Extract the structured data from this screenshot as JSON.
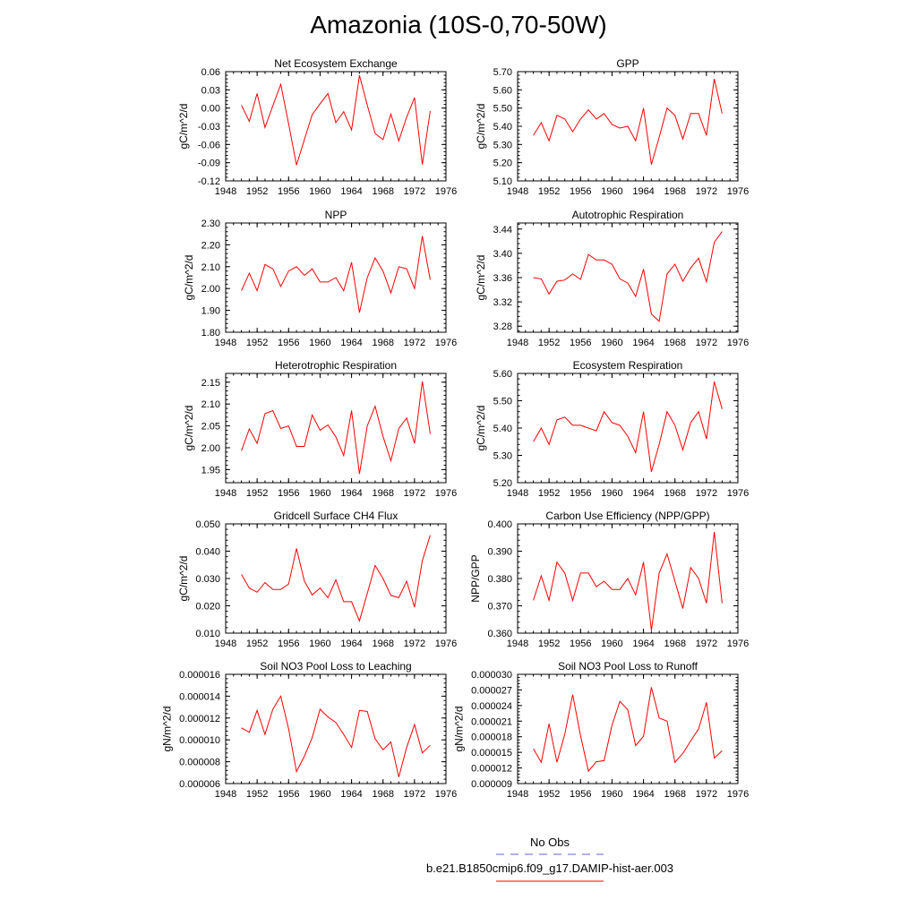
{
  "figure": {
    "title": "Amazonia (10S-0,70-50W)"
  },
  "legend": {
    "obs_label": "No Obs",
    "obs_color": "#6060e0",
    "model_label": "b.e21.B1850cmip6.f09_g17.DAMIP-hist-aer.003",
    "model_color": "#ff0000"
  },
  "chart_data": [
    {
      "type": "line",
      "title": "Net Ecosystem Exchange",
      "ylabel": "gC/m^2/d",
      "xlim": [
        1948,
        1976
      ],
      "xticks": [
        1948,
        1952,
        1956,
        1960,
        1964,
        1968,
        1972,
        1976
      ],
      "ylim": [
        -0.12,
        0.06
      ],
      "yticks": [
        "-0.12",
        "-0.09",
        "-0.06",
        "-0.03",
        "0.00",
        "0.03",
        "0.06"
      ],
      "series": [
        {
          "color": "#ff0000",
          "x": [
            1950,
            1951,
            1952,
            1953,
            1954,
            1955,
            1956,
            1957,
            1958,
            1959,
            1960,
            1961,
            1962,
            1963,
            1964,
            1965,
            1966,
            1967,
            1968,
            1969,
            1970,
            1971,
            1972,
            1973,
            1974
          ],
          "y": [
            0.005,
            -0.022,
            0.024,
            -0.032,
            0.004,
            0.039,
            -0.026,
            -0.094,
            -0.052,
            -0.011,
            0.007,
            0.024,
            -0.024,
            -0.006,
            -0.036,
            0.054,
            0.005,
            -0.042,
            -0.052,
            -0.01,
            -0.054,
            -0.015,
            0.017,
            -0.093,
            -0.005
          ]
        }
      ]
    },
    {
      "type": "line",
      "title": "GPP",
      "ylabel": "gC/m^2/d",
      "xlim": [
        1948,
        1976
      ],
      "xticks": [
        1948,
        1952,
        1956,
        1960,
        1964,
        1968,
        1972,
        1976
      ],
      "ylim": [
        5.1,
        5.7
      ],
      "yticks": [
        "5.10",
        "5.20",
        "5.30",
        "5.40",
        "5.50",
        "5.60",
        "5.70"
      ],
      "series": [
        {
          "color": "#ff0000",
          "x": [
            1950,
            1951,
            1952,
            1953,
            1954,
            1955,
            1956,
            1957,
            1958,
            1959,
            1960,
            1961,
            1962,
            1963,
            1964,
            1965,
            1966,
            1967,
            1968,
            1969,
            1970,
            1971,
            1972,
            1973,
            1974
          ],
          "y": [
            5.35,
            5.42,
            5.32,
            5.46,
            5.44,
            5.37,
            5.44,
            5.49,
            5.44,
            5.47,
            5.41,
            5.39,
            5.4,
            5.32,
            5.5,
            5.19,
            5.34,
            5.5,
            5.46,
            5.33,
            5.47,
            5.47,
            5.35,
            5.66,
            5.47
          ]
        }
      ]
    },
    {
      "type": "line",
      "title": "NPP",
      "ylabel": "gC/m^2/d",
      "xlim": [
        1948,
        1976
      ],
      "xticks": [
        1948,
        1952,
        1956,
        1960,
        1964,
        1968,
        1972,
        1976
      ],
      "ylim": [
        1.8,
        2.3
      ],
      "yticks": [
        "1.80",
        "1.90",
        "2.00",
        "2.10",
        "2.20",
        "2.30"
      ],
      "series": [
        {
          "color": "#ff0000",
          "x": [
            1950,
            1951,
            1952,
            1953,
            1954,
            1955,
            1956,
            1957,
            1958,
            1959,
            1960,
            1961,
            1962,
            1963,
            1964,
            1965,
            1966,
            1967,
            1968,
            1969,
            1970,
            1971,
            1972,
            1973,
            1974
          ],
          "y": [
            1.99,
            2.07,
            1.99,
            2.11,
            2.09,
            2.01,
            2.08,
            2.1,
            2.06,
            2.09,
            2.03,
            2.03,
            2.05,
            1.99,
            2.12,
            1.89,
            2.05,
            2.14,
            2.08,
            1.98,
            2.1,
            2.09,
            2.0,
            2.24,
            2.04
          ]
        }
      ]
    },
    {
      "type": "line",
      "title": "Autotrophic Respiration",
      "ylabel": "gC/m^2/d",
      "xlim": [
        1948,
        1976
      ],
      "xticks": [
        1948,
        1952,
        1956,
        1960,
        1964,
        1968,
        1972,
        1976
      ],
      "ylim": [
        3.27,
        3.45
      ],
      "yticks": [
        "3.28",
        "3.32",
        "3.36",
        "3.40",
        "3.44"
      ],
      "series": [
        {
          "color": "#ff0000",
          "x": [
            1950,
            1951,
            1952,
            1953,
            1954,
            1955,
            1956,
            1957,
            1958,
            1959,
            1960,
            1961,
            1962,
            1963,
            1964,
            1965,
            1966,
            1967,
            1968,
            1969,
            1970,
            1971,
            1972,
            1973,
            1974
          ],
          "y": [
            3.36,
            3.358,
            3.333,
            3.354,
            3.356,
            3.366,
            3.357,
            3.398,
            3.389,
            3.389,
            3.382,
            3.358,
            3.351,
            3.329,
            3.374,
            3.3,
            3.288,
            3.366,
            3.382,
            3.354,
            3.376,
            3.392,
            3.353,
            3.418,
            3.436
          ]
        }
      ]
    },
    {
      "type": "line",
      "title": "Heterotrophic Respiration",
      "ylabel": "gC/m^2/d",
      "xlim": [
        1948,
        1976
      ],
      "xticks": [
        1948,
        1952,
        1956,
        1960,
        1964,
        1968,
        1972,
        1976
      ],
      "ylim": [
        1.92,
        2.17
      ],
      "yticks": [
        "1.95",
        "2.00",
        "2.05",
        "2.10",
        "2.15"
      ],
      "series": [
        {
          "color": "#ff0000",
          "x": [
            1950,
            1951,
            1952,
            1953,
            1954,
            1955,
            1956,
            1957,
            1958,
            1959,
            1960,
            1961,
            1962,
            1963,
            1964,
            1965,
            1966,
            1967,
            1968,
            1969,
            1970,
            1971,
            1972,
            1973,
            1974
          ],
          "y": [
            1.993,
            2.043,
            2.01,
            2.078,
            2.085,
            2.044,
            2.05,
            2.003,
            2.003,
            2.075,
            2.04,
            2.052,
            2.025,
            1.982,
            2.085,
            1.94,
            2.05,
            2.095,
            2.026,
            1.97,
            2.044,
            2.068,
            2.01,
            2.152,
            2.032
          ]
        }
      ]
    },
    {
      "type": "line",
      "title": "Ecosystem Respiration",
      "ylabel": "gC/m^2/d",
      "xlim": [
        1948,
        1976
      ],
      "xticks": [
        1948,
        1952,
        1956,
        1960,
        1964,
        1968,
        1972,
        1976
      ],
      "ylim": [
        5.2,
        5.6
      ],
      "yticks": [
        "5.20",
        "5.30",
        "5.40",
        "5.50",
        "5.60"
      ],
      "series": [
        {
          "color": "#ff0000",
          "x": [
            1950,
            1951,
            1952,
            1953,
            1954,
            1955,
            1956,
            1957,
            1958,
            1959,
            1960,
            1961,
            1962,
            1963,
            1964,
            1965,
            1966,
            1967,
            1968,
            1969,
            1970,
            1971,
            1972,
            1973,
            1974
          ],
          "y": [
            5.35,
            5.4,
            5.34,
            5.43,
            5.44,
            5.41,
            5.41,
            5.4,
            5.39,
            5.46,
            5.42,
            5.41,
            5.37,
            5.31,
            5.46,
            5.24,
            5.34,
            5.46,
            5.41,
            5.32,
            5.42,
            5.46,
            5.36,
            5.57,
            5.47
          ]
        }
      ]
    },
    {
      "type": "line",
      "title": "Gridcell Surface CH4 Flux",
      "ylabel": "gC/m^2/d",
      "xlim": [
        1948,
        1976
      ],
      "xticks": [
        1948,
        1952,
        1956,
        1960,
        1964,
        1968,
        1972,
        1976
      ],
      "ylim": [
        0.01,
        0.05
      ],
      "yticks": [
        "0.010",
        "0.020",
        "0.030",
        "0.040",
        "0.050"
      ],
      "series": [
        {
          "color": "#ff0000",
          "x": [
            1950,
            1951,
            1952,
            1953,
            1954,
            1955,
            1956,
            1957,
            1958,
            1959,
            1960,
            1961,
            1962,
            1963,
            1964,
            1965,
            1966,
            1967,
            1968,
            1969,
            1970,
            1971,
            1972,
            1973,
            1974
          ],
          "y": [
            0.0315,
            0.0265,
            0.025,
            0.0285,
            0.026,
            0.026,
            0.028,
            0.041,
            0.029,
            0.024,
            0.0265,
            0.023,
            0.0295,
            0.0215,
            0.0215,
            0.0145,
            0.0245,
            0.0348,
            0.03,
            0.0238,
            0.023,
            0.029,
            0.0195,
            0.0365,
            0.0458
          ]
        }
      ]
    },
    {
      "type": "line",
      "title": "Carbon Use Efficiency (NPP/GPP)",
      "ylabel": "NPP/GPP",
      "xlim": [
        1948,
        1976
      ],
      "xticks": [
        1948,
        1952,
        1956,
        1960,
        1964,
        1968,
        1972,
        1976
      ],
      "ylim": [
        0.36,
        0.4
      ],
      "yticks": [
        "0.360",
        "0.370",
        "0.380",
        "0.390",
        "0.400"
      ],
      "series": [
        {
          "color": "#ff0000",
          "x": [
            1950,
            1951,
            1952,
            1953,
            1954,
            1955,
            1956,
            1957,
            1958,
            1959,
            1960,
            1961,
            1962,
            1963,
            1964,
            1965,
            1966,
            1967,
            1968,
            1969,
            1970,
            1971,
            1972,
            1973,
            1974
          ],
          "y": [
            0.372,
            0.381,
            0.372,
            0.386,
            0.382,
            0.372,
            0.382,
            0.382,
            0.377,
            0.379,
            0.376,
            0.376,
            0.38,
            0.374,
            0.386,
            0.361,
            0.382,
            0.389,
            0.379,
            0.369,
            0.384,
            0.38,
            0.371,
            0.397,
            0.371
          ]
        }
      ]
    },
    {
      "type": "line",
      "title": "Soil NO3 Pool Loss to Leaching",
      "ylabel": "gN/m^2/d",
      "xlim": [
        1948,
        1976
      ],
      "xticks": [
        1948,
        1952,
        1956,
        1960,
        1964,
        1968,
        1972,
        1976
      ],
      "ylim": [
        6e-06,
        1.6e-05
      ],
      "yticks": [
        "0.000006",
        "0.000008",
        "0.000010",
        "0.000012",
        "0.000014",
        "0.000016"
      ],
      "series": [
        {
          "color": "#ff0000",
          "x": [
            1950,
            1951,
            1952,
            1953,
            1954,
            1955,
            1956,
            1957,
            1958,
            1959,
            1960,
            1961,
            1962,
            1963,
            1964,
            1965,
            1966,
            1967,
            1968,
            1969,
            1970,
            1971,
            1972,
            1973,
            1974
          ],
          "y": [
            1.11e-05,
            1.07e-05,
            1.27e-05,
            1.05e-05,
            1.28e-05,
            1.4e-05,
            1.1e-05,
            7.1e-06,
            8.5e-06,
            1.02e-05,
            1.28e-05,
            1.21e-05,
            1.16e-05,
            1.05e-05,
            9.3e-06,
            1.27e-05,
            1.26e-05,
            1.01e-05,
            9.1e-06,
            9.8e-06,
            6.6e-06,
            9.3e-06,
            1.14e-05,
            8.8e-06,
            9.5e-06
          ]
        }
      ]
    },
    {
      "type": "line",
      "title": "Soil NO3 Pool Loss to Runoff",
      "ylabel": "gN/m^2/d",
      "xlim": [
        1948,
        1976
      ],
      "xticks": [
        1948,
        1952,
        1956,
        1960,
        1964,
        1968,
        1972,
        1976
      ],
      "ylim": [
        9e-06,
        3e-05
      ],
      "yticks": [
        "0.000009",
        "0.000012",
        "0.000015",
        "0.000018",
        "0.000021",
        "0.000024",
        "0.000027",
        "0.000030"
      ],
      "series": [
        {
          "color": "#ff0000",
          "x": [
            1950,
            1951,
            1952,
            1953,
            1954,
            1955,
            1956,
            1957,
            1958,
            1959,
            1960,
            1961,
            1962,
            1963,
            1964,
            1965,
            1966,
            1967,
            1968,
            1969,
            1970,
            1971,
            1972,
            1973,
            1974
          ],
          "y": [
            1.57e-05,
            1.31e-05,
            2.05e-05,
            1.31e-05,
            1.85e-05,
            2.61e-05,
            1.82e-05,
            1.14e-05,
            1.32e-05,
            1.34e-05,
            2.02e-05,
            2.48e-05,
            2.32e-05,
            1.63e-05,
            1.81e-05,
            2.75e-05,
            2.16e-05,
            2.1e-05,
            1.31e-05,
            1.48e-05,
            1.72e-05,
            1.95e-05,
            2.46e-05,
            1.39e-05,
            1.53e-05
          ]
        }
      ]
    }
  ]
}
